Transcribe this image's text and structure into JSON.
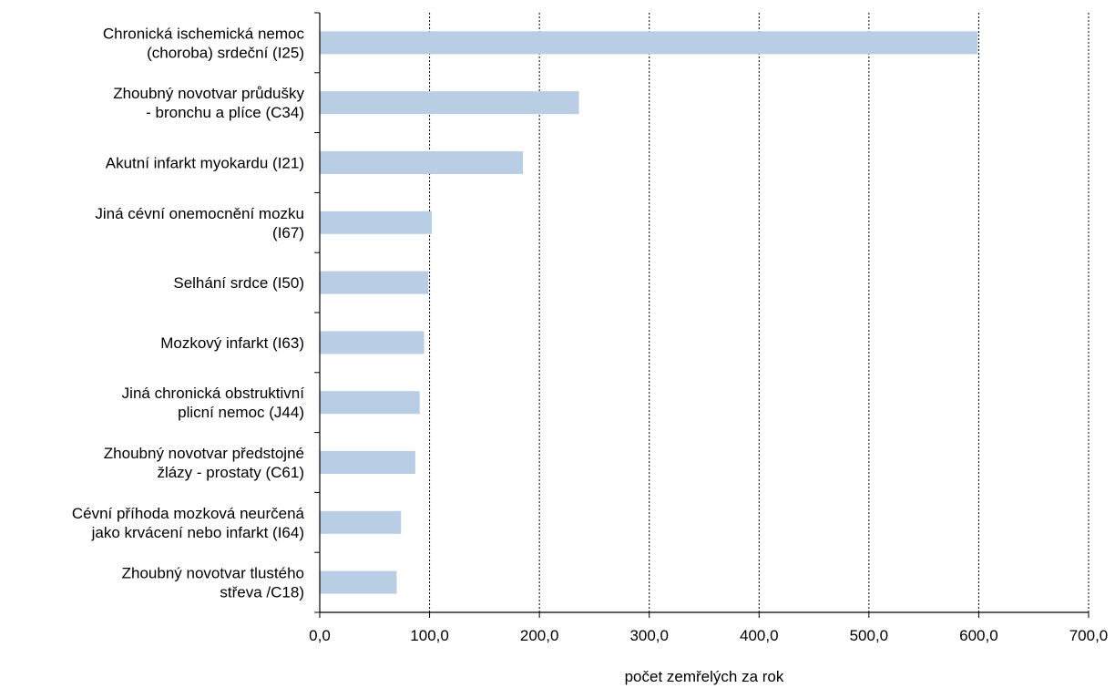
{
  "chart_data": {
    "type": "bar",
    "orientation": "horizontal",
    "categories": [
      [
        "Chronická ischemická nemoc",
        "(choroba) srdeční (I25)"
      ],
      [
        "Zhoubný novotvar průdušky",
        "- bronchu a plíce (C34)"
      ],
      [
        "Akutní infarkt myokardu (I21)"
      ],
      [
        "Jiná cévní onemocnění mozku",
        "(I67)"
      ],
      [
        "Selhání srdce (I50)"
      ],
      [
        "Mozkový infarkt (I63)"
      ],
      [
        "Jiná chronická obstruktivní",
        "plicní nemoc (J44)"
      ],
      [
        "Zhoubný novotvar předstojné",
        "žlázy - prostaty (C61)"
      ],
      [
        "Cévní příhoda mozková neurčená",
        "jako krvácení nebo infarkt (I64)"
      ],
      [
        "Zhoubný novotvar tlustého",
        "střeva /C18)"
      ]
    ],
    "values": [
      599,
      236,
      185,
      102,
      99,
      95,
      91,
      87,
      74,
      70
    ],
    "xlim": [
      0,
      700
    ],
    "ticks": [
      "0,0",
      "100,0",
      "200,0",
      "300,0",
      "400,0",
      "500,0",
      "600,0",
      "700,0"
    ],
    "xlabel": "počet zemřelých za rok",
    "ylabel": "",
    "title": "",
    "grid": "vertical dotted",
    "legend": "none",
    "bar_color": "#b9cde5"
  }
}
